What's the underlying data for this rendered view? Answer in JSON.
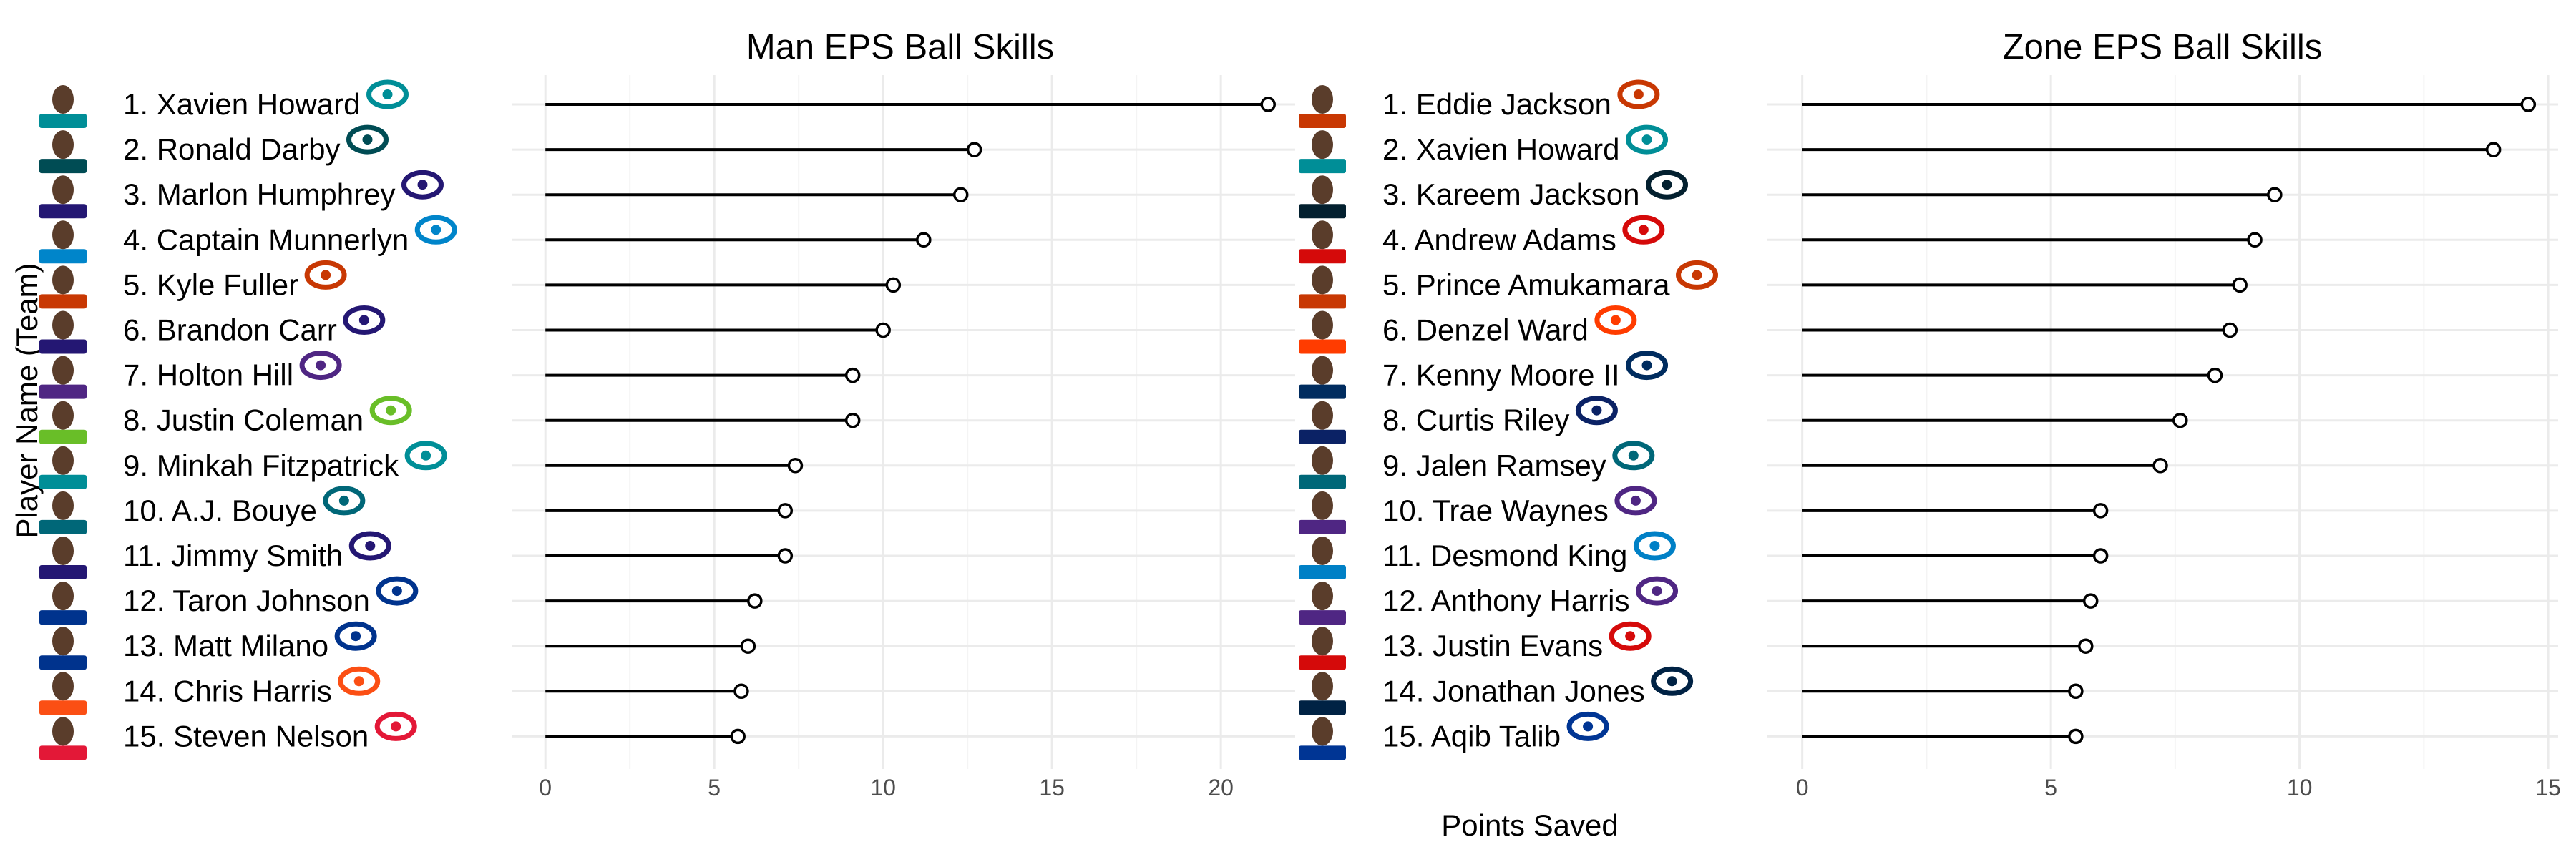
{
  "axis": {
    "ylabel": "Player Name (Team)",
    "xlabel": "Points Saved"
  },
  "colors": {
    "line": "#000000",
    "grid_major": "#ebebeb",
    "grid_minor": "#f4f4f4",
    "point_fill": "#ffffff",
    "tick_text": "#4d4d4d"
  },
  "chart_data": [
    {
      "type": "lollipop",
      "title": "Man EPS Ball Skills",
      "xlim": [
        -1,
        22.2
      ],
      "xticks": [
        0,
        5,
        10,
        15,
        20
      ],
      "grid": true,
      "categories": [
        "1. Xavien Howard",
        "2. Ronald Darby",
        "3. Marlon Humphrey",
        "4. Captain Munnerlyn",
        "5. Kyle Fuller",
        "6. Brandon Carr",
        "7. Holton Hill",
        "8. Justin Coleman",
        "9. Minkah Fitzpatrick",
        "10. A.J. Bouye",
        "11. Jimmy Smith",
        "12. Taron Johnson",
        "13. Matt Milano",
        "14. Chris Harris",
        "15. Steven Nelson"
      ],
      "values": [
        21.4,
        12.7,
        12.3,
        11.2,
        10.3,
        10.0,
        9.1,
        9.1,
        7.4,
        7.1,
        7.1,
        6.2,
        6.0,
        5.8,
        5.7
      ],
      "team_icons": [
        "dolphins-logo-icon",
        "eagles-logo-icon",
        "ravens-logo-icon",
        "panthers-logo-icon",
        "bears-logo-icon",
        "ravens-logo-icon",
        "vikings-logo-icon",
        "seahawks-logo-icon",
        "dolphins-logo-icon",
        "jaguars-logo-icon",
        "ravens-logo-icon",
        "bills-logo-icon",
        "bills-logo-icon",
        "broncos-logo-icon",
        "chiefs-logo-icon"
      ],
      "team_colors": [
        "#008e97",
        "#004c54",
        "#241773",
        "#0085ca",
        "#c83803",
        "#241773",
        "#4f2683",
        "#69be28",
        "#008e97",
        "#006778",
        "#241773",
        "#00338d",
        "#00338d",
        "#fb4f14",
        "#e31837"
      ]
    },
    {
      "type": "lollipop",
      "title": "Zone EPS Ball Skills",
      "xlim": [
        -0.7,
        15.2
      ],
      "xticks": [
        0,
        5,
        10,
        15
      ],
      "grid": true,
      "categories": [
        "1. Eddie Jackson",
        "2. Xavien Howard",
        "3. Kareem Jackson",
        "4. Andrew Adams",
        "5. Prince Amukamara",
        "6. Denzel Ward",
        "7. Kenny Moore II",
        "8. Curtis Riley",
        "9. Jalen Ramsey",
        "10. Trae Waynes",
        "11. Desmond King",
        "12. Anthony Harris",
        "13. Justin Evans",
        "14. Jonathan Jones",
        "15. Aqib Talib"
      ],
      "values": [
        14.6,
        13.9,
        9.5,
        9.1,
        8.8,
        8.6,
        8.3,
        7.6,
        7.2,
        6.0,
        6.0,
        5.8,
        5.7,
        5.5,
        5.5
      ],
      "team_icons": [
        "bears-logo-icon",
        "dolphins-logo-icon",
        "texans-logo-icon",
        "buccaneers-logo-icon",
        "bears-logo-icon",
        "browns-logo-icon",
        "colts-logo-icon",
        "giants-logo-icon",
        "jaguars-logo-icon",
        "vikings-logo-icon",
        "chargers-logo-icon",
        "vikings-logo-icon",
        "buccaneers-logo-icon",
        "patriots-logo-icon",
        "rams-logo-icon"
      ],
      "team_colors": [
        "#c83803",
        "#008e97",
        "#03202f",
        "#d50a0a",
        "#c83803",
        "#ff3c00",
        "#002c5f",
        "#0b2265",
        "#006778",
        "#4f2683",
        "#0080c6",
        "#4f2683",
        "#d50a0a",
        "#002244",
        "#003594"
      ]
    }
  ]
}
